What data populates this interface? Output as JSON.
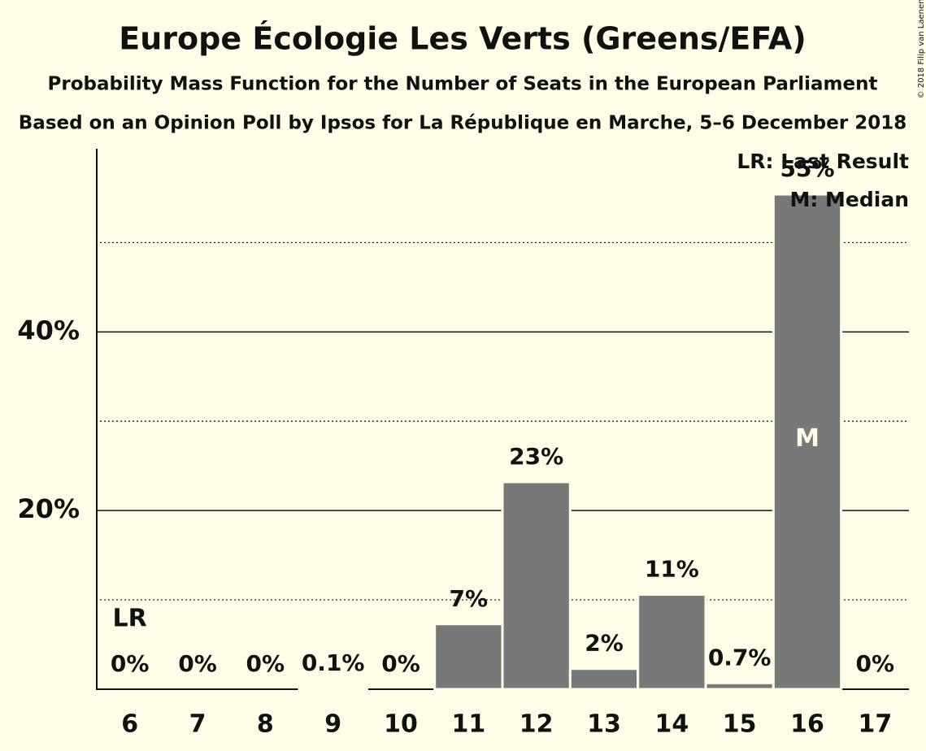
{
  "chart_data": {
    "type": "bar",
    "title": "Europe Écologie Les Verts (Greens/EFA)",
    "subtitle": "Probability Mass Function for the Number of Seats in the European Parliament",
    "subtitle2": "Based on an Opinion Poll by Ipsos for La République en Marche, 5–6 December 2018",
    "categories": [
      "6",
      "7",
      "8",
      "9",
      "10",
      "11",
      "12",
      "13",
      "14",
      "15",
      "16",
      "17"
    ],
    "values": [
      0,
      0,
      0,
      0.1,
      0,
      7.3,
      23.2,
      2.3,
      10.6,
      0.7,
      55.4,
      0
    ],
    "value_labels": [
      "0%",
      "0%",
      "0%",
      "0.1%",
      "0%",
      "7%",
      "23%",
      "2%",
      "11%",
      "0.7%",
      "55%",
      "0%"
    ],
    "color": "#787878",
    "ylim": [
      0,
      60.5
    ],
    "yticks": [
      {
        "value": 20,
        "label": "20%"
      },
      {
        "value": 40,
        "label": "40%"
      }
    ],
    "minor_yticks": [
      10,
      30,
      50
    ],
    "grid": true,
    "annotations": [
      {
        "label": "LR",
        "at": "6"
      },
      {
        "label": "M",
        "at": "16"
      }
    ],
    "legend": [
      "LR: Last Result",
      "M: Median"
    ],
    "copyright": "© 2018 Filip van Laenen"
  }
}
